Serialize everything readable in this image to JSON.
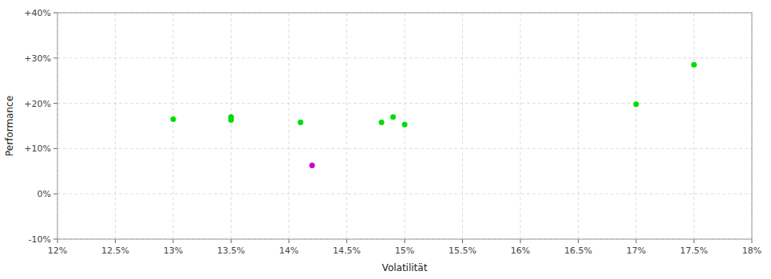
{
  "chart_data": {
    "type": "scatter",
    "xlabel": "Volatilität",
    "ylabel": "Performance",
    "xlim": [
      0.12,
      0.18
    ],
    "ylim": [
      -0.1,
      0.4
    ],
    "xticks": [
      {
        "value": 0.12,
        "label": "12%"
      },
      {
        "value": 0.125,
        "label": "12.5%"
      },
      {
        "value": 0.13,
        "label": "13%"
      },
      {
        "value": 0.135,
        "label": "13.5%"
      },
      {
        "value": 0.14,
        "label": "14%"
      },
      {
        "value": 0.145,
        "label": "14.5%"
      },
      {
        "value": 0.15,
        "label": "15%"
      },
      {
        "value": 0.155,
        "label": "15.5%"
      },
      {
        "value": 0.16,
        "label": "16%"
      },
      {
        "value": 0.165,
        "label": "16.5%"
      },
      {
        "value": 0.17,
        "label": "17%"
      },
      {
        "value": 0.175,
        "label": "17.5%"
      },
      {
        "value": 0.18,
        "label": "18%"
      }
    ],
    "yticks": [
      {
        "value": -0.1,
        "label": "-10%"
      },
      {
        "value": 0,
        "label": "0%"
      },
      {
        "value": 0.1,
        "label": "+10%"
      },
      {
        "value": 0.2,
        "label": "+20%"
      },
      {
        "value": 0.3,
        "label": "+30%"
      },
      {
        "value": 0.4,
        "label": "+40%"
      }
    ],
    "grid": true,
    "series": [
      {
        "color": "#00dd00",
        "x": [
          0.13,
          0.135,
          0.135,
          0.141,
          0.148,
          0.149,
          0.175,
          0.17,
          0.15
        ],
        "values": [
          0.165,
          0.17,
          0.163,
          0.158,
          0.158,
          0.17,
          0.285,
          0.198,
          0.153
        ]
      },
      {
        "color": "#cc00cc",
        "x": [
          0.142
        ],
        "values": [
          0.063
        ]
      }
    ]
  }
}
